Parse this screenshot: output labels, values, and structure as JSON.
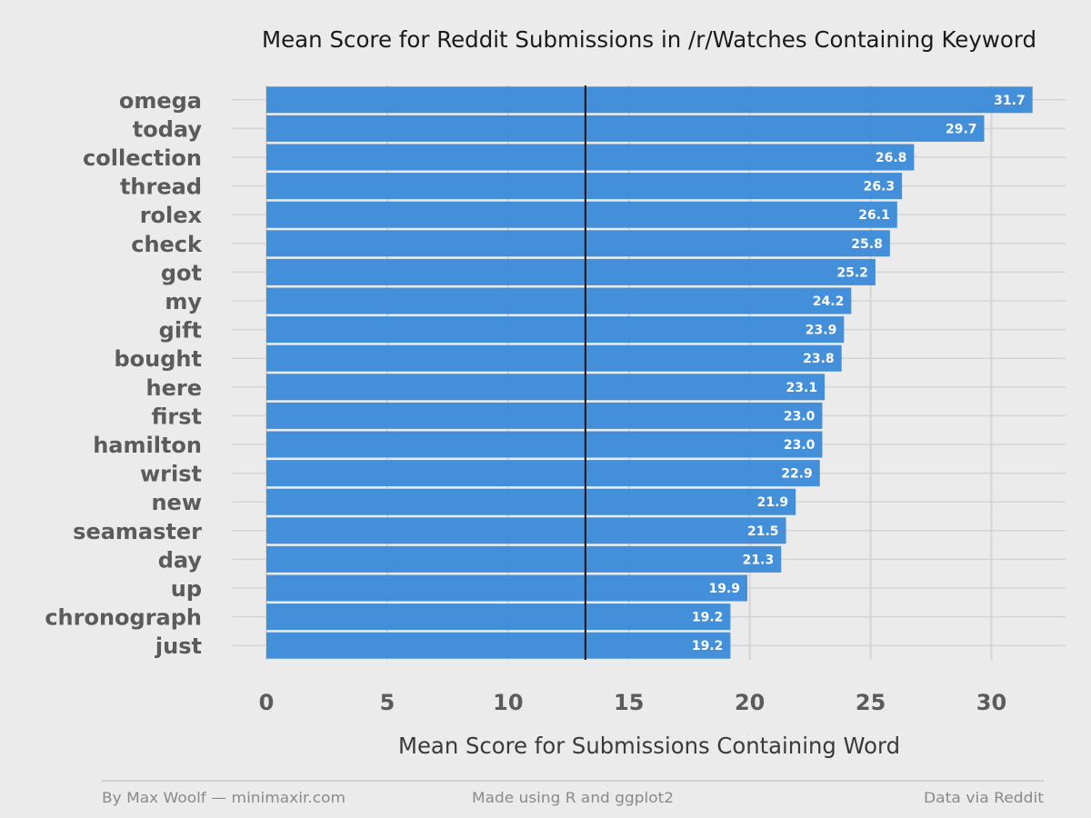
{
  "chart_data": {
    "type": "bar",
    "orientation": "horizontal",
    "title": "Mean Score for Reddit Submissions in /r/Watches Containing Keyword",
    "xlabel": "Mean Score for Submissions Containing Word",
    "ylabel": "",
    "categories": [
      "omega",
      "today",
      "collection",
      "thread",
      "rolex",
      "check",
      "got",
      "my",
      "gift",
      "bought",
      "here",
      "first",
      "hamilton",
      "wrist",
      "new",
      "seamaster",
      "day",
      "up",
      "chronograph",
      "just"
    ],
    "values": [
      31.7,
      29.7,
      26.8,
      26.3,
      26.1,
      25.8,
      25.2,
      24.2,
      23.9,
      23.8,
      23.1,
      23.0,
      23.0,
      22.9,
      21.9,
      21.5,
      21.3,
      19.9,
      19.2,
      19.2
    ],
    "value_labels": [
      "31.7",
      "29.7",
      "26.8",
      "26.3",
      "26.1",
      "25.8",
      "25.2",
      "24.2",
      "23.9",
      "23.8",
      "23.1",
      "23.0",
      "23.0",
      "22.9",
      "21.9",
      "21.5",
      "21.3",
      "19.9",
      "19.2",
      "19.2"
    ],
    "xlim": [
      0,
      32
    ],
    "xticks": [
      0,
      5,
      10,
      15,
      20,
      25,
      30
    ],
    "reference_line": 13.2,
    "grid": true,
    "bar_color": "#3a8ad8",
    "reference_line_color": "#111111"
  },
  "footer": {
    "left": "By Max Woolf — minimaxir.com",
    "center": "Made using R and ggplot2",
    "right": "Data via Reddit"
  }
}
